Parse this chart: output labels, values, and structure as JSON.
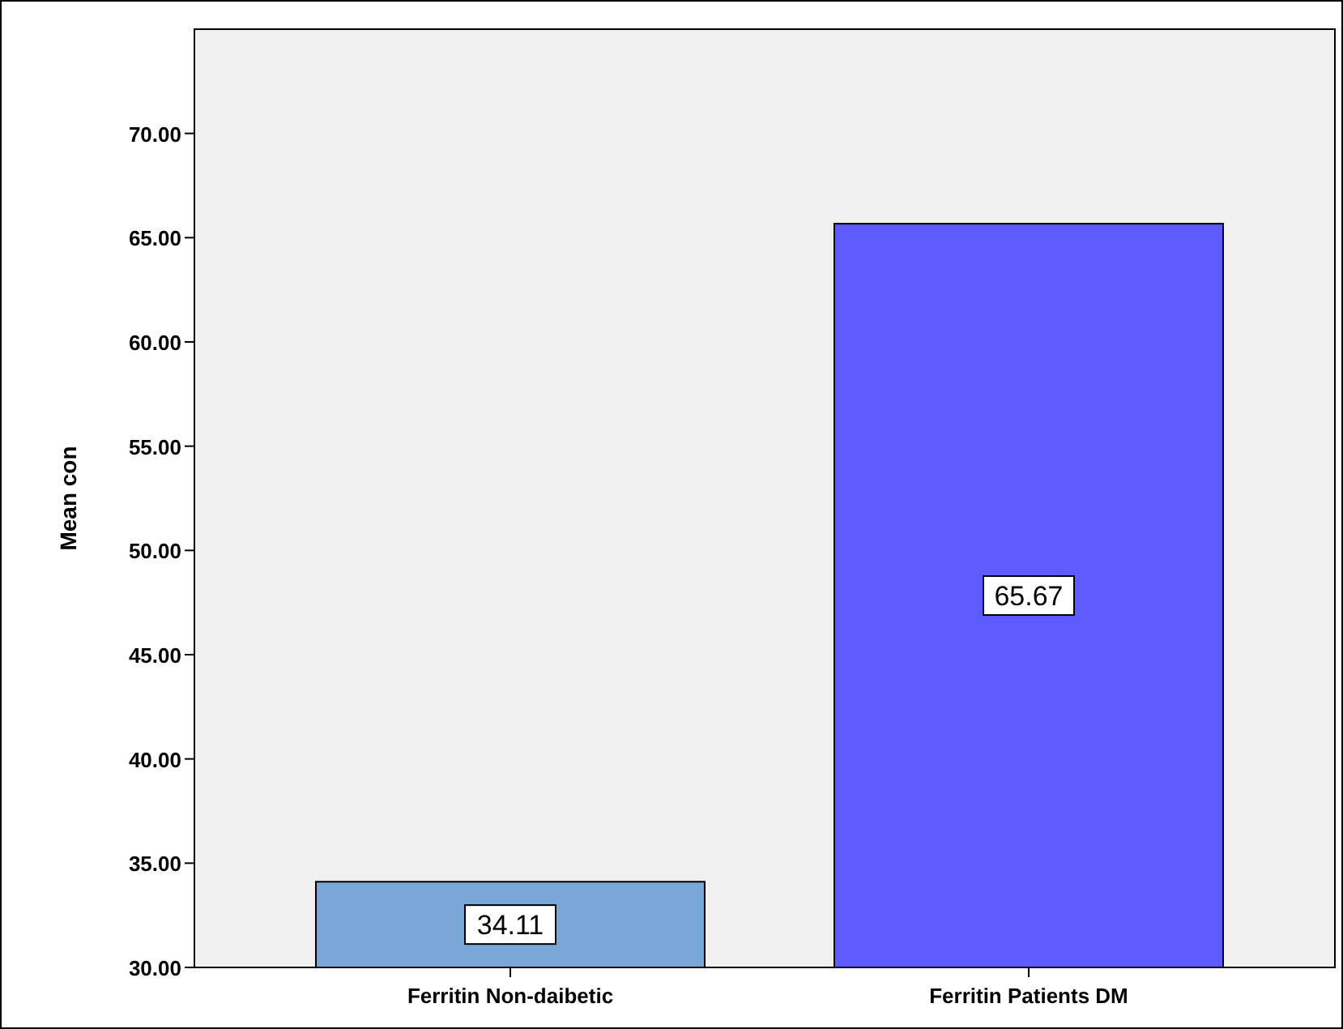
{
  "chart_data": {
    "type": "bar",
    "ylabel": "Mean con",
    "categories": [
      "Ferritin Non-daibetic",
      "Ferritin Patients DM"
    ],
    "values": [
      34.11,
      65.67
    ],
    "colors": [
      "#7ba7d6",
      "#5b5bff"
    ],
    "ylim": [
      30,
      75
    ],
    "yticks": [
      {
        "value": 30,
        "label": "30.00"
      },
      {
        "value": 35,
        "label": "35.00"
      },
      {
        "value": 40,
        "label": "40.00"
      },
      {
        "value": 45,
        "label": "45.00"
      },
      {
        "value": 50,
        "label": "50.00"
      },
      {
        "value": 55,
        "label": "55.00"
      },
      {
        "value": 60,
        "label": "60.00"
      },
      {
        "value": 65,
        "label": "65.00"
      },
      {
        "value": 70,
        "label": "70.00"
      }
    ],
    "data_labels": true
  }
}
